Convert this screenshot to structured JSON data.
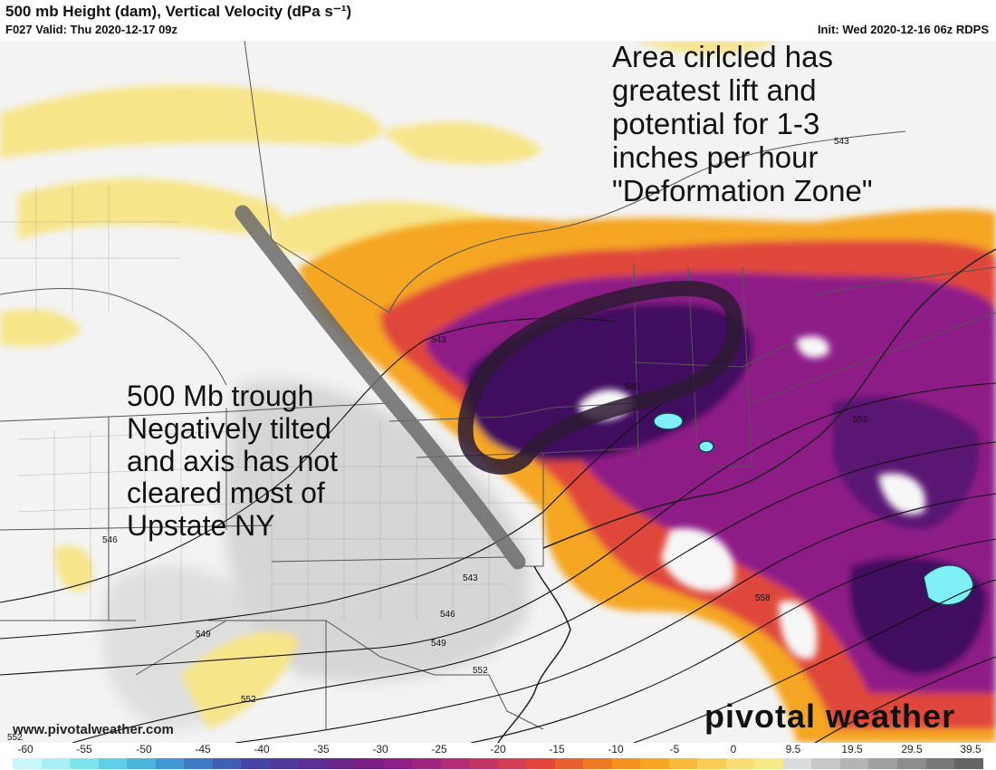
{
  "header": {
    "title": "500 mb Height (dam), Vertical Velocity (dPa s⁻¹)",
    "valid": "F027 Valid: Thu 2020-12-17 09z",
    "init": "Init: Wed 2020-12-16 06z RDPS"
  },
  "annotations": {
    "lift": "Area cirlcled has\ngreatest lift and\npotential for 1-3\ninches per hour\n\"Deformation Zone\"",
    "trough": "500 Mb trough\nNegatively tilted\nand axis has not\ncleared most of\nUpstate NY"
  },
  "height_labels": [
    "543",
    "546",
    "555",
    "543",
    "546",
    "549",
    "549",
    "552",
    "552",
    "558",
    "546",
    "552",
    "543"
  ],
  "watermark": "www.pivotalweather.com",
  "brand": "pivotal weather",
  "colorbar": {
    "ticks": [
      "-60",
      "-55",
      "-50",
      "-45",
      "-40",
      "-35",
      "-30",
      "-25",
      "-20",
      "-15",
      "-10",
      "-5",
      "0",
      "9.5",
      "19.5",
      "29.5",
      "39.5"
    ]
  },
  "colors": {
    "strong_lift": "#3f0a5e",
    "moderate_lift": "#8e1f87",
    "weak_lift": "#e0473a",
    "light_lift": "#f5a623",
    "sinking": "#f5e98a",
    "extreme_lift": "#7ff0f5",
    "trough_axis": "#6b6b6b",
    "circle": "#2b1a33"
  }
}
